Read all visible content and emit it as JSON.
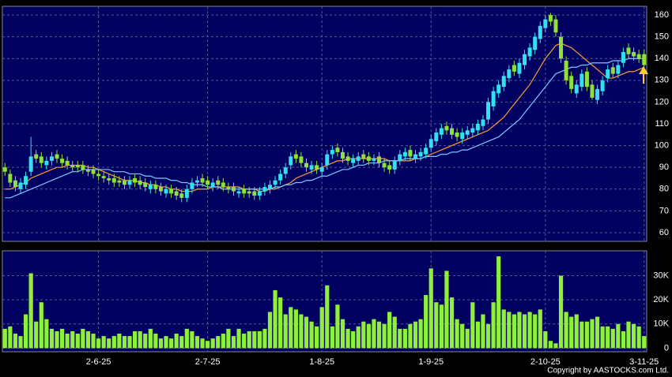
{
  "chart_data": [
    {
      "type": "candlestick",
      "categories": [
        null,
        null,
        null,
        null,
        null,
        null,
        null,
        null,
        null,
        null,
        null,
        null,
        null,
        null,
        null,
        null,
        null,
        null,
        "2-6-25",
        null,
        null,
        null,
        null,
        null,
        null,
        null,
        null,
        null,
        null,
        null,
        null,
        null,
        null,
        null,
        null,
        null,
        null,
        null,
        null,
        "2-7-25",
        null,
        null,
        null,
        null,
        null,
        null,
        null,
        null,
        null,
        null,
        null,
        null,
        null,
        null,
        null,
        null,
        null,
        null,
        null,
        null,
        null,
        "1-8-25",
        null,
        null,
        null,
        null,
        null,
        null,
        null,
        null,
        null,
        null,
        null,
        null,
        null,
        null,
        null,
        null,
        null,
        null,
        null,
        null,
        "1-9-25",
        null,
        null,
        null,
        null,
        null,
        null,
        null,
        null,
        null,
        null,
        null,
        null,
        null,
        null,
        null,
        null,
        null,
        null,
        null,
        null,
        null,
        "2-10-25",
        null,
        null,
        null,
        null,
        null,
        null,
        null,
        null,
        null,
        null,
        null,
        null,
        null,
        null,
        null,
        null,
        null,
        null,
        "3-11-25"
      ],
      "open": [
        90,
        87,
        84,
        80,
        82,
        88,
        96,
        95,
        91,
        93,
        96,
        94,
        93,
        91,
        91,
        91,
        89,
        89,
        87,
        86,
        85,
        85,
        84,
        84,
        82,
        85,
        84,
        83,
        80,
        82,
        81,
        78,
        80,
        79,
        78,
        76,
        80,
        83,
        85,
        84,
        81,
        84,
        83,
        81,
        81,
        78,
        80,
        79,
        79,
        77,
        79,
        80,
        82,
        84,
        87,
        91,
        96,
        95,
        92,
        89,
        91,
        88,
        91,
        96,
        99,
        97,
        95,
        92,
        93,
        96,
        95,
        93,
        95,
        92,
        91,
        89,
        93,
        95,
        98,
        94,
        95,
        96,
        99,
        102,
        105,
        109,
        108,
        106,
        103,
        105,
        106,
        107,
        109,
        112,
        118,
        124,
        127,
        131,
        137,
        133,
        137,
        141,
        144,
        149,
        154,
        160,
        158,
        150,
        139,
        132,
        124,
        127,
        134,
        128,
        121,
        125,
        131,
        136,
        133,
        138,
        145,
        143,
        142,
        142
      ],
      "high": [
        92,
        89,
        86,
        85,
        88,
        104,
        98,
        97,
        95,
        97,
        98,
        96,
        95,
        93,
        93,
        93,
        91,
        91,
        89,
        88,
        87,
        87,
        86,
        86,
        86,
        87,
        86,
        85,
        84,
        84,
        83,
        82,
        82,
        81,
        80,
        82,
        85,
        86,
        87,
        86,
        85,
        86,
        85,
        83,
        83,
        81,
        82,
        81,
        81,
        81,
        83,
        84,
        86,
        89,
        92,
        97,
        98,
        97,
        94,
        93,
        93,
        92,
        98,
        100,
        101,
        99,
        97,
        96,
        97,
        98,
        97,
        96,
        97,
        94,
        93,
        95,
        98,
        99,
        100,
        98,
        99,
        101,
        105,
        108,
        110,
        111,
        110,
        108,
        108,
        109,
        110,
        112,
        114,
        122,
        127,
        130,
        134,
        137,
        139,
        140,
        144,
        147,
        152,
        157,
        160,
        161,
        160,
        152,
        141,
        134,
        130,
        135,
        136,
        130,
        128,
        132,
        137,
        138,
        139,
        145,
        147,
        145,
        144,
        144
      ],
      "low": [
        86,
        81,
        79,
        78,
        80,
        86,
        92,
        90,
        89,
        91,
        92,
        90,
        89,
        88,
        88,
        87,
        86,
        85,
        84,
        83,
        82,
        81,
        81,
        80,
        80,
        81,
        80,
        79,
        78,
        78,
        77,
        76,
        76,
        75,
        74,
        74,
        78,
        81,
        81,
        80,
        79,
        80,
        79,
        78,
        77,
        76,
        76,
        76,
        75,
        75,
        77,
        78,
        80,
        82,
        85,
        89,
        92,
        90,
        88,
        87,
        87,
        86,
        89,
        94,
        95,
        92,
        91,
        90,
        91,
        92,
        91,
        91,
        90,
        88,
        87,
        87,
        91,
        93,
        93,
        92,
        93,
        94,
        97,
        100,
        103,
        105,
        103,
        102,
        101,
        103,
        104,
        105,
        107,
        110,
        116,
        122,
        125,
        129,
        132,
        131,
        135,
        139,
        142,
        147,
        152,
        155,
        150,
        138,
        128,
        124,
        122,
        125,
        125,
        121,
        119,
        123,
        129,
        131,
        131,
        136,
        140,
        139,
        138,
        135
      ],
      "close": [
        88,
        83,
        81,
        83,
        86,
        95,
        94,
        92,
        93,
        95,
        94,
        92,
        91,
        90,
        90,
        89,
        88,
        87,
        86,
        85,
        84,
        83,
        83,
        82,
        84,
        83,
        82,
        81,
        82,
        80,
        79,
        80,
        78,
        77,
        76,
        80,
        83,
        84,
        83,
        82,
        83,
        82,
        81,
        80,
        79,
        79,
        78,
        78,
        77,
        79,
        81,
        82,
        84,
        87,
        90,
        95,
        94,
        92,
        90,
        91,
        89,
        90,
        96,
        98,
        97,
        94,
        93,
        94,
        95,
        94,
        93,
        94,
        92,
        90,
        89,
        93,
        96,
        97,
        95,
        96,
        97,
        99,
        103,
        106,
        108,
        107,
        105,
        104,
        106,
        107,
        108,
        110,
        112,
        120,
        125,
        128,
        132,
        135,
        134,
        138,
        142,
        145,
        150,
        155,
        158,
        157,
        152,
        140,
        130,
        126,
        128,
        133,
        127,
        122,
        126,
        130,
        135,
        133,
        137,
        143,
        142,
        141,
        140,
        137
      ],
      "up_color": "#33e0f0",
      "down_color": "#8fe03a",
      "series": [
        {
          "color": "#ff9933",
          "values": [
            80,
            80,
            81,
            82,
            83,
            85,
            86,
            87,
            88,
            89,
            90,
            90,
            91,
            91,
            91,
            91,
            90,
            90,
            89,
            88,
            87,
            86,
            85,
            84,
            84,
            84,
            83,
            83,
            82,
            82,
            81,
            81,
            80,
            80,
            79,
            79,
            79,
            80,
            80,
            80,
            81,
            81,
            81,
            81,
            81,
            81,
            80,
            80,
            80,
            79,
            79,
            80,
            80,
            81,
            82,
            83,
            85,
            86,
            87,
            88,
            89,
            90,
            91,
            92,
            93,
            93,
            94,
            94,
            94,
            94,
            94,
            94,
            94,
            94,
            93,
            93,
            93,
            93,
            93,
            94,
            94,
            95,
            96,
            97,
            98,
            99,
            100,
            101,
            102,
            103,
            104,
            105,
            106,
            107,
            109,
            111,
            113,
            116,
            119,
            122,
            125,
            128,
            132,
            136,
            140,
            143,
            146,
            147,
            146,
            145,
            143,
            141,
            139,
            137,
            135,
            133,
            131,
            131,
            132,
            133,
            134,
            134,
            135,
            136
          ]
        },
        {
          "color": "#7ec8ff",
          "values": [
            76,
            76,
            77,
            78,
            79,
            80,
            81,
            82,
            83,
            84,
            85,
            86,
            87,
            88,
            88,
            89,
            89,
            89,
            89,
            89,
            89,
            88,
            88,
            88,
            87,
            87,
            87,
            86,
            86,
            85,
            85,
            85,
            84,
            84,
            83,
            83,
            82,
            82,
            82,
            81,
            81,
            81,
            80,
            80,
            80,
            80,
            80,
            80,
            80,
            80,
            80,
            80,
            81,
            81,
            82,
            82,
            83,
            83,
            84,
            84,
            85,
            86,
            86,
            87,
            88,
            89,
            89,
            90,
            91,
            91,
            92,
            92,
            92,
            93,
            93,
            93,
            93,
            94,
            94,
            94,
            94,
            95,
            95,
            95,
            96,
            96,
            97,
            97,
            98,
            98,
            99,
            100,
            101,
            102,
            103,
            104,
            106,
            108,
            110,
            112,
            115,
            118,
            121,
            124,
            127,
            130,
            133,
            134,
            135,
            136,
            136,
            137,
            137,
            138,
            138,
            138,
            138,
            139,
            139,
            139,
            140,
            140,
            140,
            140
          ]
        }
      ],
      "ylim": [
        56,
        164
      ],
      "yticks": [
        60,
        70,
        80,
        90,
        100,
        110,
        120,
        130,
        140,
        150,
        160
      ],
      "grid": true,
      "copyright": "Copyright by AASTOCKS.com Ltd."
    },
    {
      "type": "bar",
      "values": [
        8000,
        9000,
        6000,
        5000,
        14000,
        31000,
        11000,
        19000,
        12000,
        8000,
        7000,
        8000,
        6000,
        7000,
        6000,
        8000,
        7000,
        6000,
        4000,
        5000,
        4000,
        5000,
        6000,
        5000,
        5000,
        7000,
        7000,
        6000,
        8000,
        6000,
        4000,
        5000,
        4000,
        6000,
        5000,
        8000,
        7000,
        5000,
        4000,
        3000,
        4000,
        5000,
        6000,
        8000,
        5000,
        8000,
        6000,
        7000,
        7000,
        7000,
        8000,
        15000,
        24000,
        21000,
        14000,
        17000,
        16000,
        14000,
        13000,
        11000,
        9000,
        17000,
        26000,
        9000,
        18000,
        12000,
        8000,
        7000,
        9000,
        11000,
        10000,
        12000,
        11000,
        10000,
        15000,
        13000,
        8000,
        8000,
        10000,
        11000,
        12000,
        22000,
        33000,
        19000,
        18000,
        32000,
        21000,
        12000,
        10000,
        8000,
        19000,
        11000,
        14000,
        10000,
        19000,
        38000,
        16000,
        15000,
        14000,
        15000,
        14000,
        15000,
        14000,
        16000,
        7000,
        3000,
        2000,
        30000,
        15000,
        13000,
        14000,
        11000,
        11000,
        12000,
        13000,
        9000,
        9000,
        8000,
        10000,
        7000,
        11000,
        10000,
        9000,
        5000
      ],
      "color": "#8ef03a",
      "ylim": [
        -1500,
        40300
      ],
      "yticks": [
        0,
        {
          "value": 10000,
          "label": "10K"
        },
        {
          "value": 20000,
          "label": "20K"
        },
        {
          "value": 30000,
          "label": "30K"
        }
      ],
      "grid": true
    }
  ]
}
